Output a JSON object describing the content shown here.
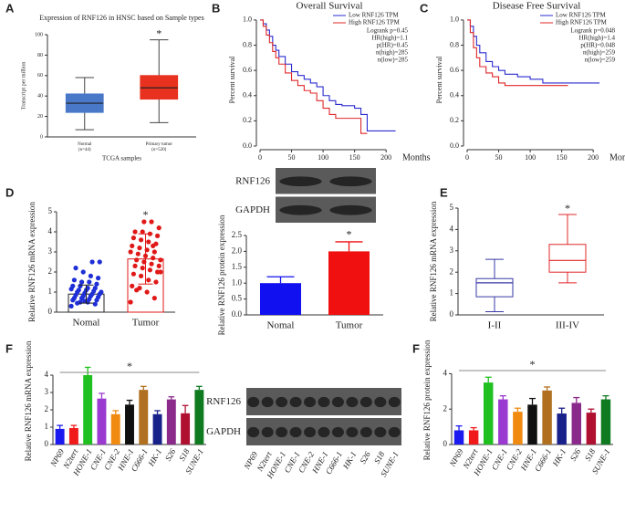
{
  "chart_data": [
    {
      "panel": "A",
      "type": "box",
      "title": "Expression of RNF126 in HNSC based on Sample types",
      "y_label": "Transcript per million",
      "x_label": "TCGA samples",
      "categories": [
        "Normal",
        "Primary tumor"
      ],
      "category_notes": [
        "(n=44)",
        "(n=520)"
      ],
      "min": [
        7,
        14
      ],
      "q1": [
        24,
        37
      ],
      "median": [
        33,
        48
      ],
      "q3": [
        42,
        60
      ],
      "max": [
        58,
        95
      ],
      "colors": [
        "#4a78c8",
        "#e8321f"
      ],
      "ylim": [
        0,
        100
      ],
      "yticks": [
        0,
        20,
        40,
        60,
        80,
        100
      ],
      "annotations": [
        "*"
      ]
    },
    {
      "panel": "B",
      "type": "km",
      "title": "Overall Survival",
      "y_label": "Percent survival",
      "x_label": "Months",
      "series": [
        {
          "name": "Low RNF126 TPM",
          "color": "#2b2bd0",
          "x": [
            0,
            5,
            10,
            15,
            20,
            25,
            30,
            40,
            50,
            60,
            70,
            80,
            90,
            100,
            110,
            120,
            130,
            140,
            150,
            155,
            160,
            170,
            200,
            215
          ],
          "values": [
            1,
            0.97,
            0.92,
            0.87,
            0.8,
            0.76,
            0.71,
            0.65,
            0.59,
            0.56,
            0.53,
            0.5,
            0.47,
            0.4,
            0.36,
            0.33,
            0.32,
            0.32,
            0.3,
            0.3,
            0.25,
            0.12,
            0.12,
            0.12
          ]
        },
        {
          "name": "High RNF126 TPM",
          "color": "#e0282a",
          "x": [
            0,
            5,
            10,
            15,
            20,
            25,
            30,
            40,
            50,
            60,
            70,
            80,
            90,
            100,
            110,
            120,
            140,
            150,
            160,
            170
          ],
          "values": [
            1,
            0.95,
            0.88,
            0.82,
            0.75,
            0.7,
            0.65,
            0.58,
            0.52,
            0.48,
            0.44,
            0.42,
            0.36,
            0.3,
            0.25,
            0.22,
            0.22,
            0.22,
            0.1,
            0.1
          ]
        }
      ],
      "stats": [
        "Logrank p=0.45",
        "HR(high)=1.1",
        "p(HR)=0.45",
        "n(high)=285",
        "n(low)=285"
      ],
      "xlim": [
        0,
        220
      ],
      "xticks": [
        0,
        50,
        100,
        150,
        200
      ],
      "ylim": [
        0,
        1.05
      ],
      "yticks": [
        {
          "value": 0,
          "label": "0.0"
        },
        0.2,
        0.4,
        0.6,
        0.8,
        {
          "value": 1,
          "label": "1.0"
        }
      ]
    },
    {
      "panel": "C",
      "type": "km",
      "title": "Disease Free Survival",
      "y_label": "Percent survival",
      "x_label": "Months",
      "series": [
        {
          "name": "Low RNF126 TPM",
          "color": "#2b2bd0",
          "x": [
            0,
            5,
            10,
            15,
            20,
            30,
            40,
            50,
            60,
            80,
            100,
            120,
            150,
            180,
            210
          ],
          "values": [
            1,
            0.95,
            0.87,
            0.8,
            0.74,
            0.67,
            0.63,
            0.6,
            0.57,
            0.55,
            0.53,
            0.5,
            0.5,
            0.5,
            0.5
          ]
        },
        {
          "name": "High RNF126 TPM",
          "color": "#e0282a",
          "x": [
            0,
            5,
            10,
            15,
            20,
            30,
            40,
            50,
            60,
            80,
            100,
            120,
            150,
            160
          ],
          "values": [
            1,
            0.9,
            0.78,
            0.7,
            0.63,
            0.58,
            0.55,
            0.5,
            0.48,
            0.48,
            0.48,
            0.48,
            0.48,
            0.48
          ]
        }
      ],
      "stats": [
        "Logrank p=0.048",
        "HR(high)=1.4",
        "p(HR)=0.048",
        "n(high)=259",
        "n(low)=259"
      ],
      "xlim": [
        0,
        220
      ],
      "xticks": [
        0,
        50,
        100,
        150,
        200
      ],
      "ylim": [
        0,
        1.05
      ],
      "yticks": [
        {
          "value": 0,
          "label": "0.0"
        },
        0.2,
        0.4,
        0.6,
        0.8,
        {
          "value": 1,
          "label": "1.0"
        }
      ]
    },
    {
      "panel": "D",
      "type": "dotbar",
      "y_label": "Relative RNF126 mRNA expression",
      "categories": [
        "Nomal",
        "Tumor"
      ],
      "values": [
        0.9,
        2.65
      ],
      "errors": [
        0.45,
        1.25
      ],
      "colors": [
        "#1f2fd8",
        "#e01818"
      ],
      "points": [
        [
          0.3,
          0.4,
          0.5,
          0.5,
          0.6,
          0.6,
          0.65,
          0.7,
          0.7,
          0.75,
          0.8,
          0.8,
          0.85,
          0.9,
          0.9,
          0.95,
          1.0,
          1.0,
          1.05,
          1.1,
          1.1,
          1.15,
          1.2,
          1.2,
          1.3,
          1.3,
          1.4,
          1.5,
          1.5,
          1.6,
          1.7,
          1.8,
          2.0,
          2.2,
          2.5,
          2.5,
          0.55,
          0.45
        ],
        [
          0.5,
          0.7,
          1.0,
          1.2,
          1.3,
          1.5,
          1.6,
          1.8,
          1.9,
          2.0,
          2.1,
          2.2,
          2.3,
          2.3,
          2.4,
          2.5,
          2.6,
          2.6,
          2.7,
          2.8,
          2.9,
          3.0,
          3.0,
          3.1,
          3.2,
          3.3,
          3.4,
          3.5,
          3.6,
          3.7,
          3.8,
          3.9,
          4.0,
          4.0,
          4.2,
          4.5,
          4.5,
          1.1,
          2.0,
          3.3
        ]
      ],
      "ylim": [
        0,
        5
      ],
      "yticks": [
        0,
        1,
        2,
        3,
        4,
        5
      ],
      "annotations": [
        "*"
      ]
    },
    {
      "type": "blot",
      "row_labels": [
        "RNF126",
        "GAPDH"
      ]
    },
    {
      "type": "bar",
      "y_label": "Relative RNF126 protein expression",
      "categories": [
        "Nomal",
        "Tumor"
      ],
      "values": [
        1.0,
        2.0
      ],
      "errors": [
        0.2,
        0.3
      ],
      "colors": [
        "#1010f0",
        "#f01010"
      ],
      "ylim": [
        0,
        2.5
      ],
      "yticks": [
        {
          "value": 0,
          "label": "0.0"
        },
        0.5,
        {
          "value": 1,
          "label": "1.0"
        },
        1.5,
        {
          "value": 2,
          "label": "2.0"
        },
        2.5
      ],
      "annotations": [
        "*"
      ]
    },
    {
      "panel": "E",
      "type": "box",
      "y_label": "Relative RNF126 mRNA expression",
      "categories": [
        "I-II",
        "III-IV"
      ],
      "min": [
        0.15,
        1.5
      ],
      "q1": [
        0.85,
        2.0
      ],
      "median": [
        1.5,
        2.55
      ],
      "q3": [
        1.7,
        3.3
      ],
      "max": [
        2.6,
        4.7
      ],
      "colors": [
        "#3a3aa8",
        "#e0282a"
      ],
      "ylim": [
        0,
        5
      ],
      "yticks": [
        0,
        1,
        2,
        3,
        4,
        5
      ],
      "annotations": [
        "*"
      ]
    },
    {
      "panel": "F",
      "type": "bar",
      "y_label": "Relative RNF126 mRNA expression",
      "categories": [
        "NP69",
        "N2tert",
        "HONE-1",
        "CNE-1",
        "CNE-2",
        "HNE-1",
        "C666-1",
        "HK-1",
        "S26",
        "S18",
        "SUNE-1"
      ],
      "values": [
        0.9,
        0.95,
        4.0,
        2.65,
        1.75,
        2.3,
        3.15,
        1.75,
        2.6,
        1.8,
        3.15
      ],
      "errors": [
        0.2,
        0.15,
        0.45,
        0.3,
        0.2,
        0.25,
        0.2,
        0.2,
        0.15,
        0.45,
        0.2
      ],
      "colors": [
        "#1a1af0",
        "#f01a1a",
        "#20c020",
        "#9a3ad0",
        "#f08a10",
        "#101010",
        "#b07020",
        "#18208a",
        "#8a2a8a",
        "#b01030",
        "#107a20"
      ],
      "ylim": [
        0,
        5
      ],
      "yticks": [
        0,
        1,
        2,
        3,
        4
      ],
      "annotations": [
        "*"
      ]
    },
    {
      "type": "blot",
      "row_labels": [
        "RNF126",
        "GAPDH"
      ],
      "lane_labels": [
        "NP69",
        "N2tert",
        "HONE-1",
        "CNE-1",
        "CNE-2",
        "HNE-1",
        "C666-1",
        "HK-1",
        "S26",
        "S18",
        "SUNE-1"
      ]
    },
    {
      "panel": "F",
      "type": "bar",
      "y_label": "Relative RNF126 protein expression",
      "categories": [
        "NP69",
        "N2tert",
        "HONE-1",
        "CNE-1",
        "CNE-2",
        "HNE-1",
        "C666-1",
        "HK-1",
        "S26",
        "S18",
        "SUNE-1"
      ],
      "values": [
        0.8,
        0.8,
        3.5,
        2.55,
        1.85,
        2.25,
        3.05,
        1.75,
        2.35,
        1.8,
        2.55
      ],
      "errors": [
        0.25,
        0.15,
        0.3,
        0.2,
        0.2,
        0.35,
        0.2,
        0.3,
        0.3,
        0.2,
        0.2
      ],
      "colors": [
        "#1a1af0",
        "#f01a1a",
        "#20c020",
        "#9a3ad0",
        "#f08a10",
        "#101010",
        "#b07020",
        "#18208a",
        "#8a2a8a",
        "#b01030",
        "#107a20"
      ],
      "ylim": [
        0,
        5
      ],
      "yticks": [
        0,
        2,
        4
      ],
      "annotations": [
        "*"
      ]
    }
  ]
}
